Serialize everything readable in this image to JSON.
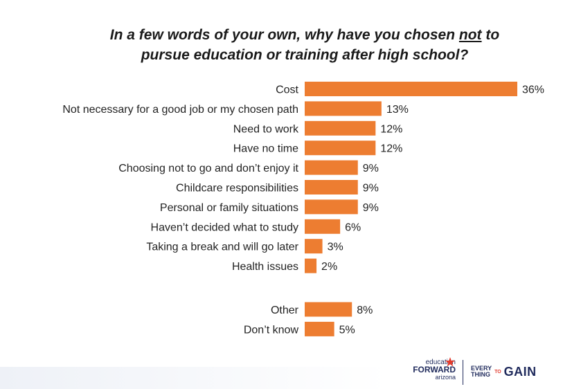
{
  "title": {
    "part1": "In a few words of your own, why have you chosen ",
    "underlined": "not",
    "part2": " to",
    "line2": "pursue education or training after high school?"
  },
  "colors": {
    "bar": "#ed7d31",
    "text": "#222222",
    "brand_navy": "#1f2a5c"
  },
  "chart_data": {
    "type": "bar",
    "orientation": "horizontal",
    "categories": [
      "Cost",
      "Not necessary for a good job or my chosen path",
      "Need to work",
      "Have no time",
      "Choosing not to go and don’t enjoy it",
      "Childcare responsibilities",
      "Personal or family situations",
      "Haven’t decided what to study",
      "Taking a break and will go later",
      "Health issues",
      "Other",
      "Don’t know"
    ],
    "values": [
      36,
      13,
      12,
      12,
      9,
      9,
      9,
      6,
      3,
      2,
      8,
      5
    ],
    "value_labels": [
      "36%",
      "13%",
      "12%",
      "12%",
      "9%",
      "9%",
      "9%",
      "6%",
      "3%",
      "2%",
      "8%",
      "5%"
    ],
    "group_break_after_index": 9,
    "xlim": [
      0,
      36
    ],
    "grid": false,
    "legend": "none"
  },
  "footer": {
    "logo1": {
      "line1": "education",
      "line2": "FORWARD",
      "line3": "arizona"
    },
    "logo2": {
      "every": "EVERY",
      "thing": "THING",
      "to": "TO",
      "gain": "GAIN"
    }
  }
}
